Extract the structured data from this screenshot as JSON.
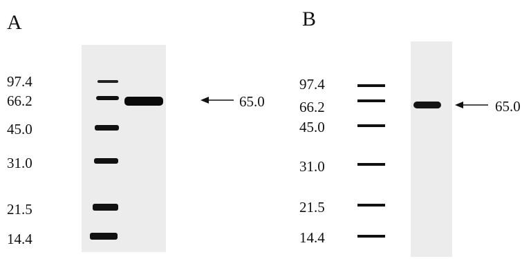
{
  "panels": [
    {
      "letter": "A",
      "mw_labels": [
        "97.4",
        "66.2",
        "45.0",
        "31.0",
        "21.5",
        "14.4"
      ],
      "arrow_label": "65.0"
    },
    {
      "letter": "B",
      "mw_labels": [
        "97.4",
        "66.2",
        "45.0",
        "31.0",
        "21.5",
        "14.4"
      ],
      "arrow_label": "65.0"
    }
  ],
  "colors": {
    "gel_background": "#ececec",
    "band": "#111111",
    "text": "#111111"
  }
}
